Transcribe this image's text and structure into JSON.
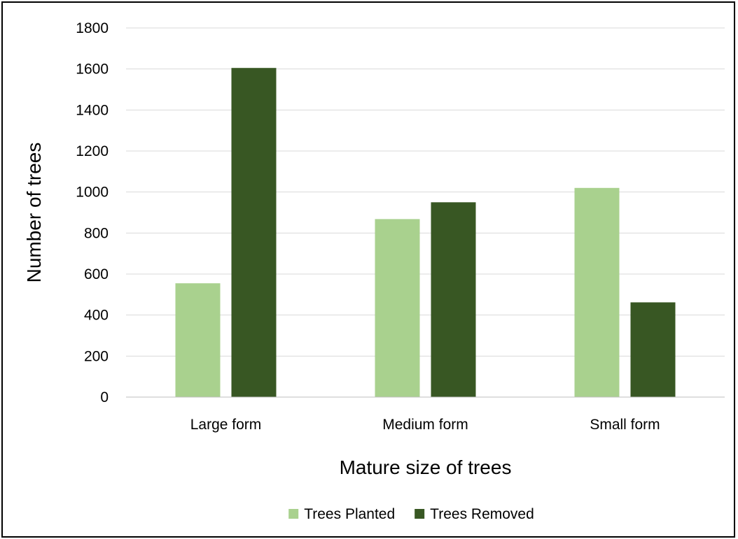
{
  "chart_data": {
    "type": "bar",
    "title": "",
    "xlabel": "Mature size of trees",
    "ylabel": "Number of trees",
    "categories": [
      "Large form",
      "Medium form",
      "Small form"
    ],
    "series": [
      {
        "name": "Trees Planted",
        "values": [
          555,
          868,
          1020
        ],
        "color": "#a9d18e"
      },
      {
        "name": "Trees Removed",
        "values": [
          1605,
          950,
          462
        ],
        "color": "#385723"
      }
    ],
    "ylim": [
      0,
      1800
    ],
    "yticks": [
      0,
      200,
      400,
      600,
      800,
      1000,
      1200,
      1400,
      1600,
      1800
    ],
    "grid": true,
    "legend": "bottom"
  }
}
